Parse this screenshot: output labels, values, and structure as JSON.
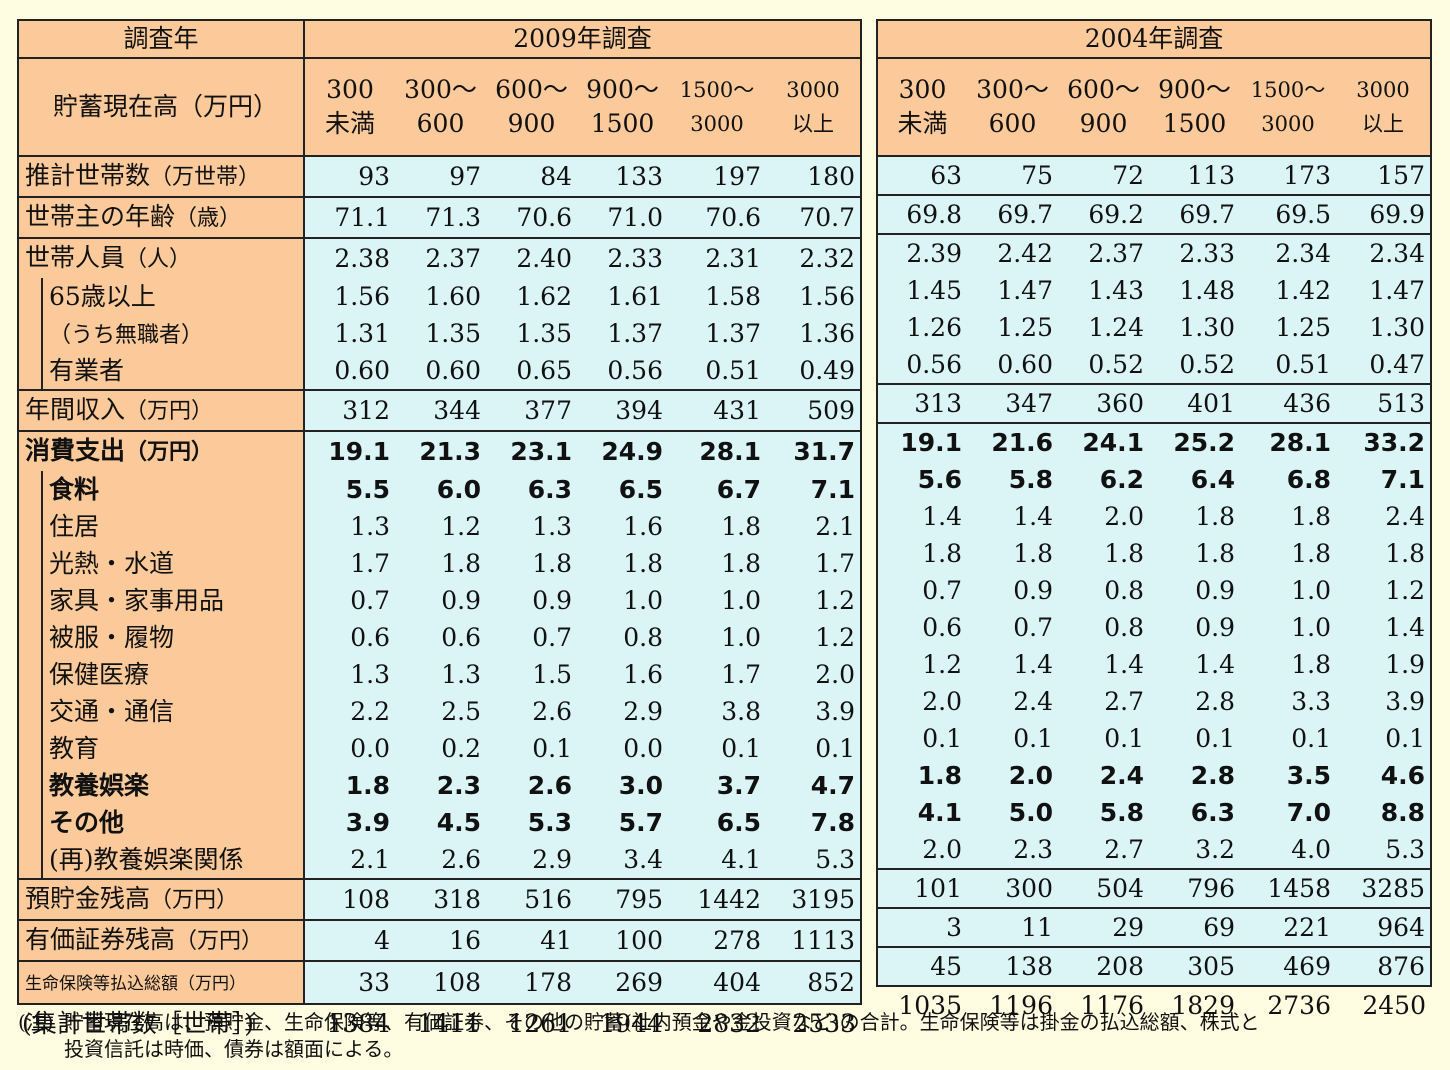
{
  "header": {
    "year_label": "調査年",
    "survey_2009": "2009年調査",
    "survey_2004": "2004年調査",
    "savings_label": "貯蓄現在高（万円）",
    "brackets": [
      {
        "l1": "300",
        "l2": "未満"
      },
      {
        "l1": "300～",
        "l2": "600"
      },
      {
        "l1": "600～",
        "l2": "900"
      },
      {
        "l1": "900～",
        "l2": "1500"
      },
      {
        "l1": "1500～",
        "l2": "3000"
      },
      {
        "l1": "3000",
        "l2": "以上"
      }
    ]
  },
  "rows": [
    {
      "label": "推計世帯数",
      "unit": "（万世帯）",
      "v2009": [
        "93",
        "97",
        "84",
        "133",
        "197",
        "180"
      ],
      "v2004": [
        "63",
        "75",
        "72",
        "113",
        "173",
        "157"
      ]
    },
    {
      "label": "世帯主の年齢",
      "unit": "（歳）",
      "v2009": [
        "71.1",
        "71.3",
        "70.6",
        "71.0",
        "70.6",
        "70.7"
      ],
      "v2004": [
        "69.8",
        "69.7",
        "69.2",
        "69.7",
        "69.5",
        "69.9"
      ]
    },
    {
      "label": "世帯人員",
      "unit": "（人）",
      "v2009": [
        "2.38",
        "2.37",
        "2.40",
        "2.33",
        "2.31",
        "2.32"
      ],
      "v2004": [
        "2.39",
        "2.42",
        "2.37",
        "2.33",
        "2.34",
        "2.34"
      ]
    },
    {
      "label": "65歳以上",
      "unit": "",
      "v2009": [
        "1.56",
        "1.60",
        "1.62",
        "1.61",
        "1.58",
        "1.56"
      ],
      "v2004": [
        "1.45",
        "1.47",
        "1.43",
        "1.48",
        "1.42",
        "1.47"
      ]
    },
    {
      "label": "（うち無職者）",
      "unit": "",
      "v2009": [
        "1.31",
        "1.35",
        "1.35",
        "1.37",
        "1.37",
        "1.36"
      ],
      "v2004": [
        "1.26",
        "1.25",
        "1.24",
        "1.30",
        "1.25",
        "1.30"
      ]
    },
    {
      "label": "有業者",
      "unit": "",
      "v2009": [
        "0.60",
        "0.60",
        "0.65",
        "0.56",
        "0.51",
        "0.49"
      ],
      "v2004": [
        "0.56",
        "0.60",
        "0.52",
        "0.52",
        "0.51",
        "0.47"
      ]
    },
    {
      "label": "年間収入",
      "unit": "（万円）",
      "v2009": [
        "312",
        "344",
        "377",
        "394",
        "431",
        "509"
      ],
      "v2004": [
        "313",
        "347",
        "360",
        "401",
        "436",
        "513"
      ]
    },
    {
      "label": "消費支出",
      "unit": "（万円）",
      "v2009": [
        "19.1",
        "21.3",
        "23.1",
        "24.9",
        "28.1",
        "31.7"
      ],
      "v2004": [
        "19.1",
        "21.6",
        "24.1",
        "25.2",
        "28.1",
        "33.2"
      ]
    },
    {
      "label": "食料",
      "unit": "",
      "v2009": [
        "5.5",
        "6.0",
        "6.3",
        "6.5",
        "6.7",
        "7.1"
      ],
      "v2004": [
        "5.6",
        "5.8",
        "6.2",
        "6.4",
        "6.8",
        "7.1"
      ]
    },
    {
      "label": "住居",
      "unit": "",
      "v2009": [
        "1.3",
        "1.2",
        "1.3",
        "1.6",
        "1.8",
        "2.1"
      ],
      "v2004": [
        "1.4",
        "1.4",
        "2.0",
        "1.8",
        "1.8",
        "2.4"
      ]
    },
    {
      "label": "光熱・水道",
      "unit": "",
      "v2009": [
        "1.7",
        "1.8",
        "1.8",
        "1.8",
        "1.8",
        "1.7"
      ],
      "v2004": [
        "1.8",
        "1.8",
        "1.8",
        "1.8",
        "1.8",
        "1.8"
      ]
    },
    {
      "label": "家具・家事用品",
      "unit": "",
      "v2009": [
        "0.7",
        "0.9",
        "0.9",
        "1.0",
        "1.0",
        "1.2"
      ],
      "v2004": [
        "0.7",
        "0.9",
        "0.8",
        "0.9",
        "1.0",
        "1.2"
      ]
    },
    {
      "label": "被服・履物",
      "unit": "",
      "v2009": [
        "0.6",
        "0.6",
        "0.7",
        "0.8",
        "1.0",
        "1.2"
      ],
      "v2004": [
        "0.6",
        "0.7",
        "0.8",
        "0.9",
        "1.0",
        "1.4"
      ]
    },
    {
      "label": "保健医療",
      "unit": "",
      "v2009": [
        "1.3",
        "1.3",
        "1.5",
        "1.6",
        "1.7",
        "2.0"
      ],
      "v2004": [
        "1.2",
        "1.4",
        "1.4",
        "1.4",
        "1.8",
        "1.9"
      ]
    },
    {
      "label": "交通・通信",
      "unit": "",
      "v2009": [
        "2.2",
        "2.5",
        "2.6",
        "2.9",
        "3.8",
        "3.9"
      ],
      "v2004": [
        "2.0",
        "2.4",
        "2.7",
        "2.8",
        "3.3",
        "3.9"
      ]
    },
    {
      "label": "教育",
      "unit": "",
      "v2009": [
        "0.0",
        "0.2",
        "0.1",
        "0.0",
        "0.1",
        "0.1"
      ],
      "v2004": [
        "0.1",
        "0.1",
        "0.1",
        "0.1",
        "0.1",
        "0.1"
      ]
    },
    {
      "label": "教養娯楽",
      "unit": "",
      "v2009": [
        "1.8",
        "2.3",
        "2.6",
        "3.0",
        "3.7",
        "4.7"
      ],
      "v2004": [
        "1.8",
        "2.0",
        "2.4",
        "2.8",
        "3.5",
        "4.6"
      ]
    },
    {
      "label": "その他",
      "unit": "",
      "v2009": [
        "3.9",
        "4.5",
        "5.3",
        "5.7",
        "6.5",
        "7.8"
      ],
      "v2004": [
        "4.1",
        "5.0",
        "5.8",
        "6.3",
        "7.0",
        "8.8"
      ]
    },
    {
      "label": "(再)教養娯楽関係",
      "unit": "",
      "v2009": [
        "2.1",
        "2.6",
        "2.9",
        "3.4",
        "4.1",
        "5.3"
      ],
      "v2004": [
        "2.0",
        "2.3",
        "2.7",
        "3.2",
        "4.0",
        "5.3"
      ]
    },
    {
      "label": "預貯金残高",
      "unit": "（万円）",
      "v2009": [
        "108",
        "318",
        "516",
        "795",
        "1442",
        "3195"
      ],
      "v2004": [
        "101",
        "300",
        "504",
        "796",
        "1458",
        "3285"
      ]
    },
    {
      "label": "有価証券残高",
      "unit": "（万円）",
      "v2009": [
        "4",
        "16",
        "41",
        "100",
        "278",
        "1113"
      ],
      "v2004": [
        "3",
        "11",
        "29",
        "69",
        "221",
        "964"
      ]
    },
    {
      "label": "生命保険等払込総額",
      "unit": "（万円）",
      "v2009": [
        "33",
        "108",
        "178",
        "269",
        "404",
        "852"
      ],
      "v2004": [
        "45",
        "138",
        "208",
        "305",
        "469",
        "876"
      ]
    }
  ],
  "totals": {
    "label": "(集計世帯数［世帯］)",
    "v2009": [
      "1384",
      "1411",
      "1261",
      "1944",
      "2832",
      "2533"
    ],
    "v2004": [
      "1035",
      "1196",
      "1176",
      "1829",
      "2736",
      "2450"
    ]
  },
  "note": {
    "head": "(注)",
    "line1": "貯蓄現在高は、預貯金、生命保険等、有価証券、その他の貯蓄(社内預金や金投資など)の合計。生命保険等は掛金の払込総額、株式と",
    "line2": "投資信託は時価、債券は額面による。"
  }
}
